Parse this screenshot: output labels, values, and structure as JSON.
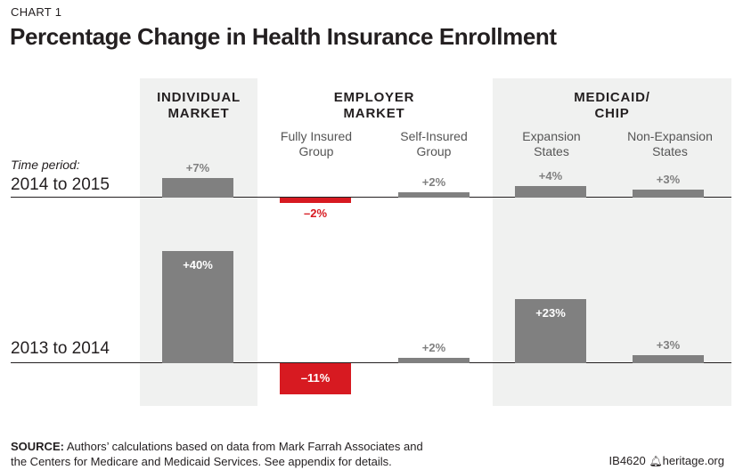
{
  "kicker": "CHART 1",
  "title": "Percentage Change in Health Insurance Enrollment",
  "colors": {
    "bar": "#808080",
    "negative": "#d71a21",
    "positive_label": "#808080",
    "panel": "#f0f1f0"
  },
  "groups": [
    {
      "line1": "INDIVIDUAL",
      "line2": "MARKET"
    },
    {
      "line1": "EMPLOYER",
      "line2": "MARKET"
    },
    {
      "line1": "MEDICAID/",
      "line2": "CHIP"
    }
  ],
  "subgroups": [
    {
      "line1": "Fully Insured",
      "line2": "Group"
    },
    {
      "line1": "Self-Insured",
      "line2": "Group"
    },
    {
      "line1": "Expansion",
      "line2": "States"
    },
    {
      "line1": "Non-Expansion",
      "line2": "States"
    }
  ],
  "time_label": "Time period:",
  "chart_data": {
    "type": "bar",
    "categories": [
      "Individual Market",
      "Employer Market – Fully Insured Group",
      "Employer Market – Self-Insured Group",
      "Medicaid/CHIP – Expansion States",
      "Medicaid/CHIP – Non-Expansion States"
    ],
    "series": [
      {
        "name": "2014 to 2015",
        "values": [
          7,
          -2,
          2,
          4,
          3
        ],
        "labels": [
          "+7%",
          "–2%",
          "+2%",
          "+4%",
          "+3%"
        ]
      },
      {
        "name": "2013 to 2014",
        "values": [
          40,
          -11,
          2,
          23,
          3
        ],
        "labels": [
          "+40%",
          "–11%",
          "+2%",
          "+23%",
          "+3%"
        ]
      }
    ],
    "unit": "%"
  },
  "source": {
    "label": "SOURCE:",
    "text": " Authors’ calculations based on data from Mark Farrah Associates and",
    "text2": "the Centers for Medicare and Medicaid Services. See appendix for details."
  },
  "footer_id": "IB4620",
  "footer_site": "heritage.org"
}
